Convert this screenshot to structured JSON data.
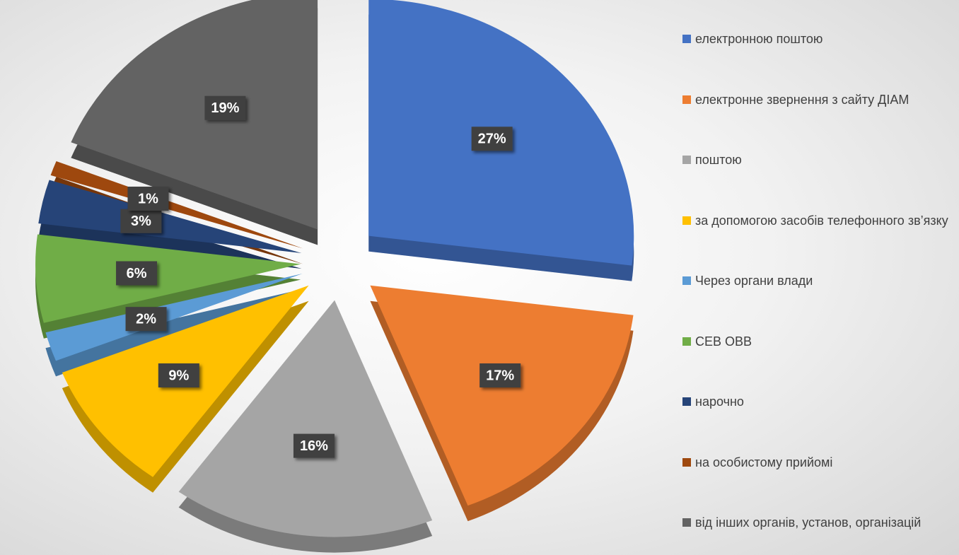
{
  "chart_data": {
    "type": "pie",
    "categories": [
      "електронною поштою",
      "електронне звернення з сайту ДІАМ",
      "поштою",
      "за допомогою засобів телефонного зв’язку",
      "Через органи влади",
      "СЕВ ОВВ",
      "нарочно",
      "на особистому прийомі",
      "від інших органів, установ, організацій"
    ],
    "values": [
      27,
      17,
      16,
      9,
      2,
      6,
      3,
      1,
      19
    ],
    "value_labels": [
      "27%",
      "17%",
      "16%",
      "9%",
      "2%",
      "6%",
      "3%",
      "1%",
      "19%"
    ],
    "colors": [
      "#4472c4",
      "#ed7d31",
      "#a5a5a5",
      "#ffc000",
      "#5b9bd5",
      "#70ad47",
      "#264478",
      "#9e480e",
      "#636363"
    ],
    "legend": "right"
  }
}
